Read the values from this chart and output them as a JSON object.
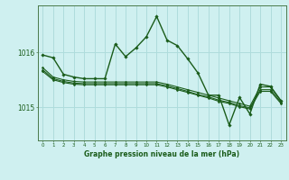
{
  "background_color": "#cff0f0",
  "grid_color": "#aedcdc",
  "line_color": "#1a5c1a",
  "marker_color": "#1a5c1a",
  "title": "Graphe pression niveau de la mer (hPa)",
  "ylabel_ticks": [
    1015,
    1016
  ],
  "xlim": [
    -0.5,
    23.5
  ],
  "ylim": [
    1014.4,
    1016.85
  ],
  "x_ticks": [
    0,
    1,
    2,
    3,
    4,
    5,
    6,
    7,
    8,
    9,
    10,
    11,
    12,
    13,
    14,
    15,
    16,
    17,
    18,
    19,
    20,
    21,
    22,
    23
  ],
  "series": [
    [
      1015.95,
      1015.9,
      1015.6,
      1015.55,
      1015.52,
      1015.52,
      1015.52,
      1016.15,
      1015.92,
      1016.08,
      1016.28,
      1016.65,
      1016.22,
      1016.12,
      1015.88,
      1015.62,
      1015.22,
      1015.22,
      1014.68,
      1015.18,
      1014.88,
      1015.42,
      1015.38,
      1015.12
    ],
    [
      1015.72,
      1015.55,
      1015.5,
      1015.47,
      1015.46,
      1015.46,
      1015.46,
      1015.46,
      1015.46,
      1015.46,
      1015.46,
      1015.46,
      1015.42,
      1015.37,
      1015.32,
      1015.27,
      1015.22,
      1015.17,
      1015.12,
      1015.07,
      1015.02,
      1015.37,
      1015.37,
      1015.12
    ],
    [
      1015.68,
      1015.52,
      1015.47,
      1015.44,
      1015.43,
      1015.43,
      1015.43,
      1015.43,
      1015.43,
      1015.43,
      1015.43,
      1015.43,
      1015.39,
      1015.34,
      1015.29,
      1015.23,
      1015.19,
      1015.13,
      1015.09,
      1015.03,
      1014.99,
      1015.32,
      1015.32,
      1015.09
    ],
    [
      1015.65,
      1015.5,
      1015.45,
      1015.42,
      1015.41,
      1015.41,
      1015.41,
      1015.41,
      1015.41,
      1015.41,
      1015.41,
      1015.41,
      1015.37,
      1015.32,
      1015.27,
      1015.22,
      1015.17,
      1015.11,
      1015.07,
      1015.01,
      1014.97,
      1015.29,
      1015.29,
      1015.07
    ]
  ]
}
